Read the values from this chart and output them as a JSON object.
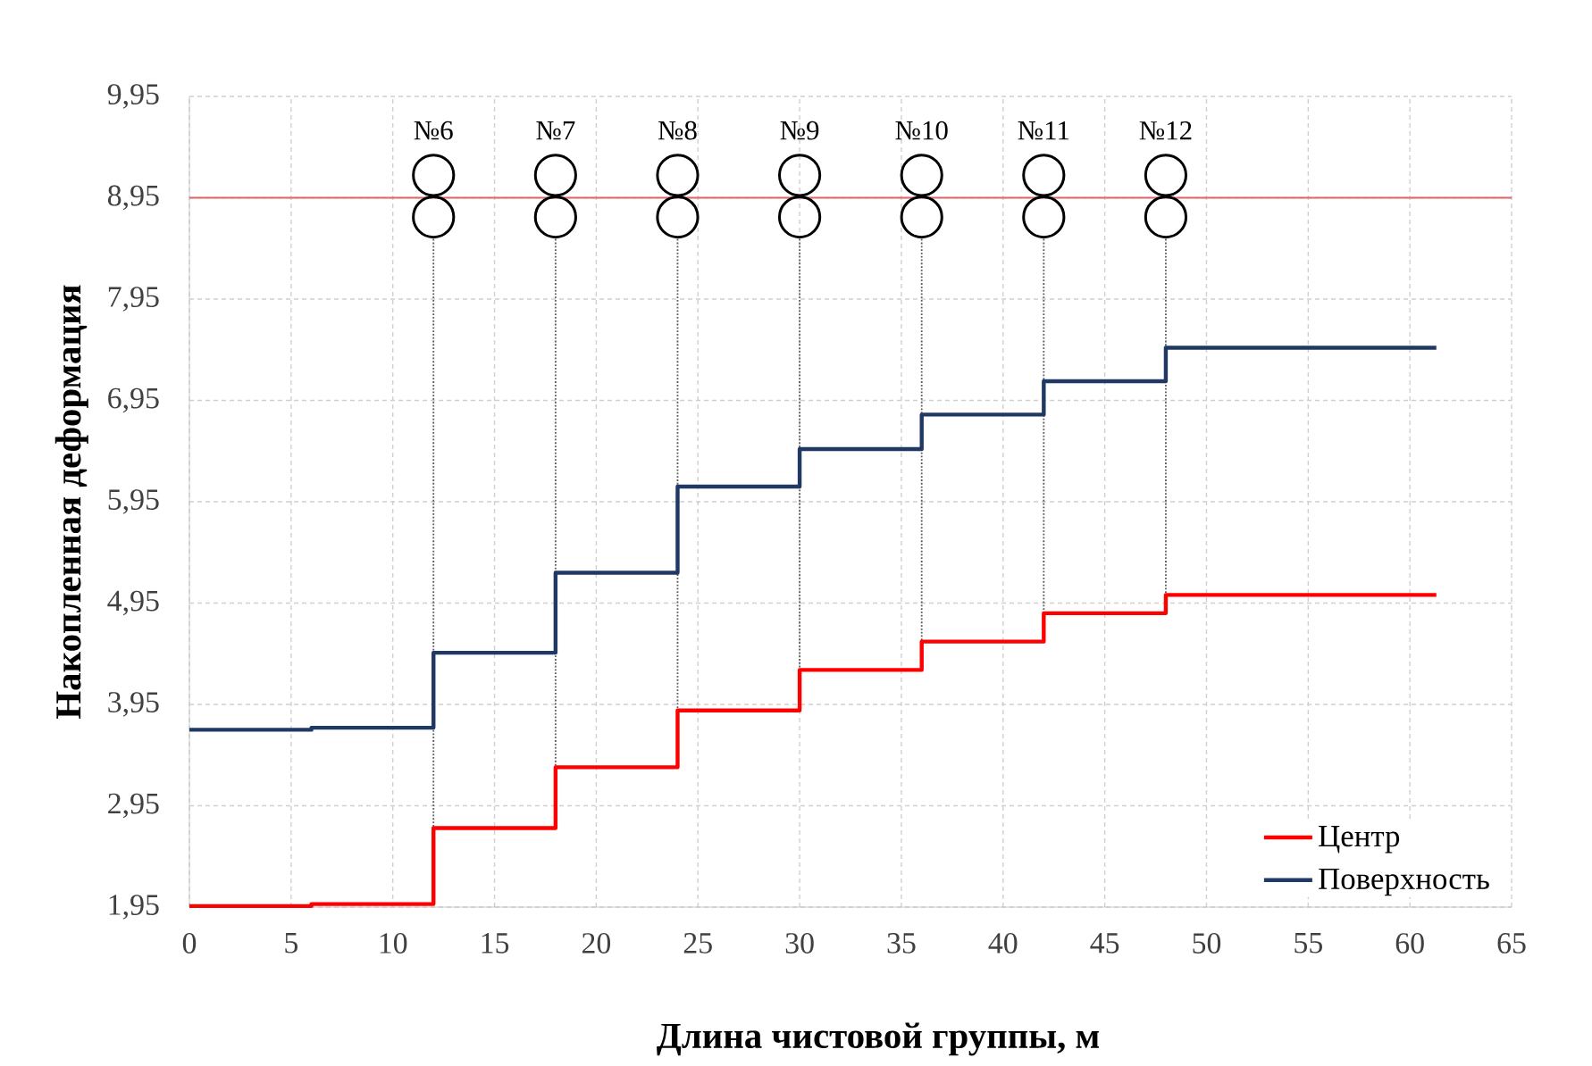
{
  "chart_data": {
    "type": "step",
    "xlabel": "Длина чистовой группы, м",
    "ylabel": "Накопленная деформация",
    "xlim": [
      0,
      65
    ],
    "xticks": [
      0,
      5,
      10,
      15,
      20,
      25,
      30,
      35,
      40,
      45,
      50,
      55,
      60,
      65
    ],
    "ylim": [
      1.95,
      9.95
    ],
    "yticks": [
      {
        "value": 1.95,
        "label": "1,95"
      },
      {
        "value": 2.95,
        "label": "2,95"
      },
      {
        "value": 3.95,
        "label": "3,95"
      },
      {
        "value": 4.95,
        "label": "4,95"
      },
      {
        "value": 5.95,
        "label": "5,95"
      },
      {
        "value": 6.95,
        "label": "6,95"
      },
      {
        "value": 7.95,
        "label": "7,95"
      },
      {
        "value": 8.95,
        "label": "8,95"
      },
      {
        "value": 9.95,
        "label": "9,95"
      }
    ],
    "x": [
      0,
      6,
      12,
      18,
      24,
      30,
      36,
      42,
      48,
      61.3
    ],
    "series": [
      {
        "name": "Центр",
        "color": "#ff0000",
        "values": [
          1.96,
          1.98,
          2.73,
          3.33,
          3.89,
          4.29,
          4.57,
          4.85,
          5.03,
          5.03
        ]
      },
      {
        "name": "Поверхность",
        "color": "#1f3864",
        "values": [
          3.7,
          3.72,
          4.46,
          5.25,
          6.1,
          6.47,
          6.81,
          7.14,
          7.47,
          7.47
        ]
      }
    ],
    "ref_lines": [
      {
        "axis": "y",
        "value": 8.95,
        "color": "#e06666",
        "line_style": "solid"
      },
      {
        "axis": "x",
        "value": 12,
        "color": "#595959",
        "line_style": "dotted"
      },
      {
        "axis": "x",
        "value": 18,
        "color": "#595959",
        "line_style": "dotted"
      },
      {
        "axis": "x",
        "value": 24,
        "color": "#595959",
        "line_style": "dotted"
      },
      {
        "axis": "x",
        "value": 30,
        "color": "#595959",
        "line_style": "dotted"
      },
      {
        "axis": "x",
        "value": 36,
        "color": "#595959",
        "line_style": "dotted"
      },
      {
        "axis": "x",
        "value": 42,
        "color": "#595959",
        "line_style": "dotted"
      },
      {
        "axis": "x",
        "value": 48,
        "color": "#595959",
        "line_style": "dotted"
      }
    ],
    "annotations": [
      "№6",
      "№7",
      "№8",
      "№9",
      "№10",
      "№11",
      "№12"
    ],
    "grid": true,
    "legend": "bottom right"
  }
}
